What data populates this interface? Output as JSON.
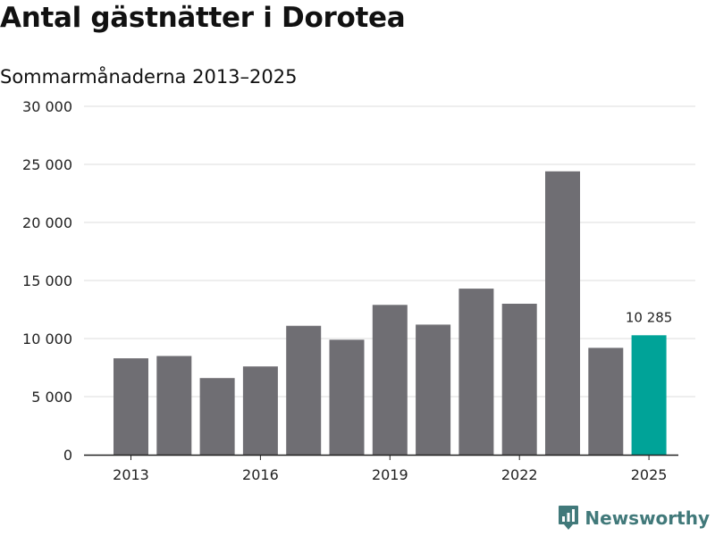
{
  "chart_data": {
    "type": "bar",
    "title": "Antal gästnätter i Dorotea",
    "subtitle": "Sommarmånaderna 2013–2025",
    "xlabel": "",
    "ylabel": "",
    "categories": [
      "2013",
      "2014",
      "2015",
      "2016",
      "2017",
      "2018",
      "2019",
      "2020",
      "2021",
      "2022",
      "2023",
      "2024",
      "2025"
    ],
    "values": [
      8300,
      8500,
      6600,
      7600,
      11100,
      9900,
      12900,
      11200,
      14300,
      13000,
      24400,
      9200,
      10285
    ],
    "x_tick_labels": [
      "2013",
      "2016",
      "2019",
      "2022",
      "2025"
    ],
    "y_ticks": [
      0,
      5000,
      10000,
      15000,
      20000,
      25000,
      30000
    ],
    "y_tick_labels": [
      "0",
      "5 000",
      "10 000",
      "15 000",
      "20 000",
      "25 000",
      "30 000"
    ],
    "ylim": [
      0,
      30000
    ],
    "grid": true,
    "highlight": {
      "category": "2025",
      "label": "10 285"
    },
    "colors": {
      "bar": "#6f6e73",
      "highlight": "#00a398",
      "grid": "#dddddd",
      "axis": "#222222",
      "text": "#222222"
    }
  },
  "branding": {
    "name": "Newsworthy",
    "icon": "newsworthy-logo-icon",
    "color": "#41797a"
  }
}
